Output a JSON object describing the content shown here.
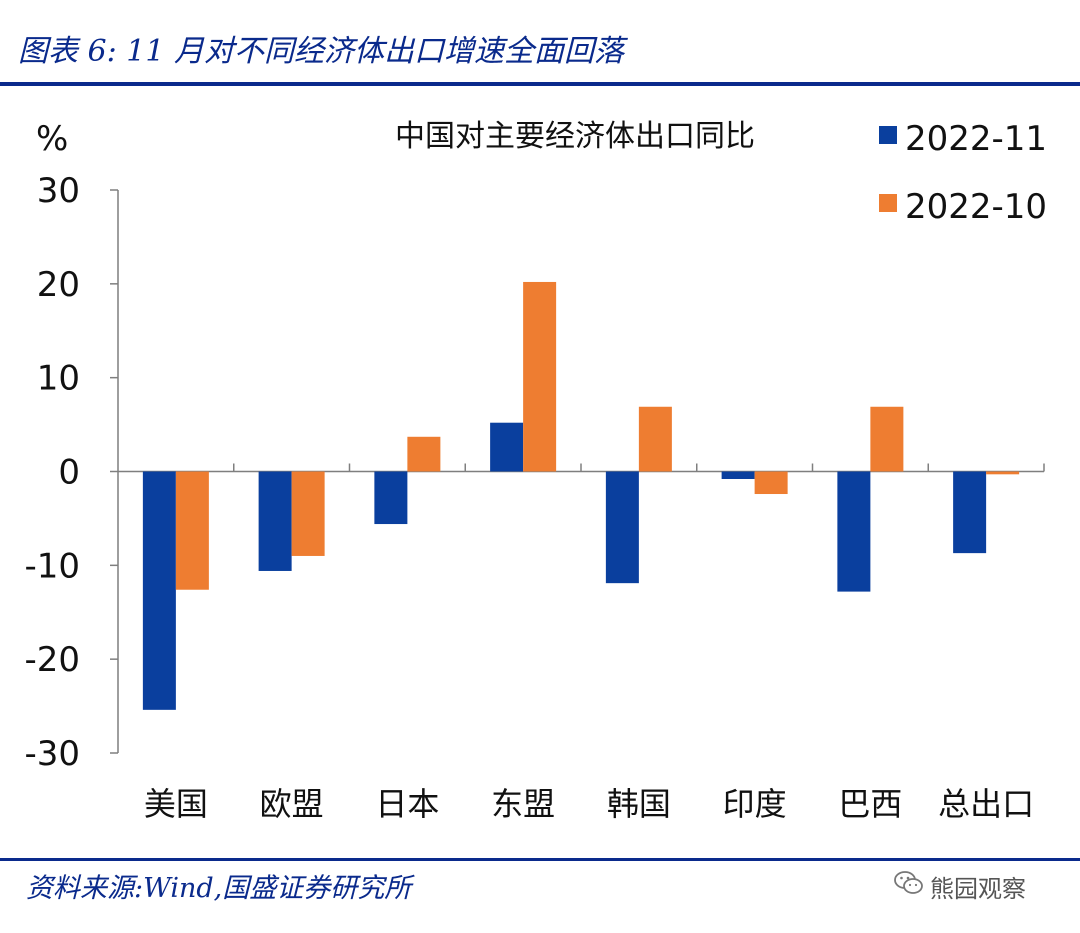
{
  "header": {
    "figure_title": "图表 6:  11 月对不同经济体出口增速全面回落"
  },
  "footer": {
    "source": "资料来源:Wind,国盛证券研究所",
    "watermark": "熊园观察",
    "watermark_icon": "wechat-icon"
  },
  "colors": {
    "series_1": "#0a3f9e",
    "series_2": "#ee7d31",
    "accent": "#0a2a8c",
    "axis": "#7f7f7f"
  },
  "chart_data": {
    "type": "bar",
    "title": "中国对主要经济体出口同比",
    "ylabel": "%",
    "xlabel": "",
    "ylim": [
      -30,
      30
    ],
    "yticks": [
      30,
      20,
      10,
      0,
      -10,
      -20,
      -30
    ],
    "categories": [
      "美国",
      "欧盟",
      "日本",
      "东盟",
      "韩国",
      "印度",
      "巴西",
      "总出口"
    ],
    "series": [
      {
        "name": "2022-11",
        "values": [
          -25.4,
          -10.6,
          -5.6,
          5.2,
          -11.9,
          -0.8,
          -12.8,
          -8.7
        ]
      },
      {
        "name": "2022-10",
        "values": [
          -12.6,
          -9.0,
          3.7,
          20.2,
          6.9,
          -2.4,
          6.9,
          -0.3
        ]
      }
    ],
    "legend_position": "top-right",
    "grid": false
  }
}
